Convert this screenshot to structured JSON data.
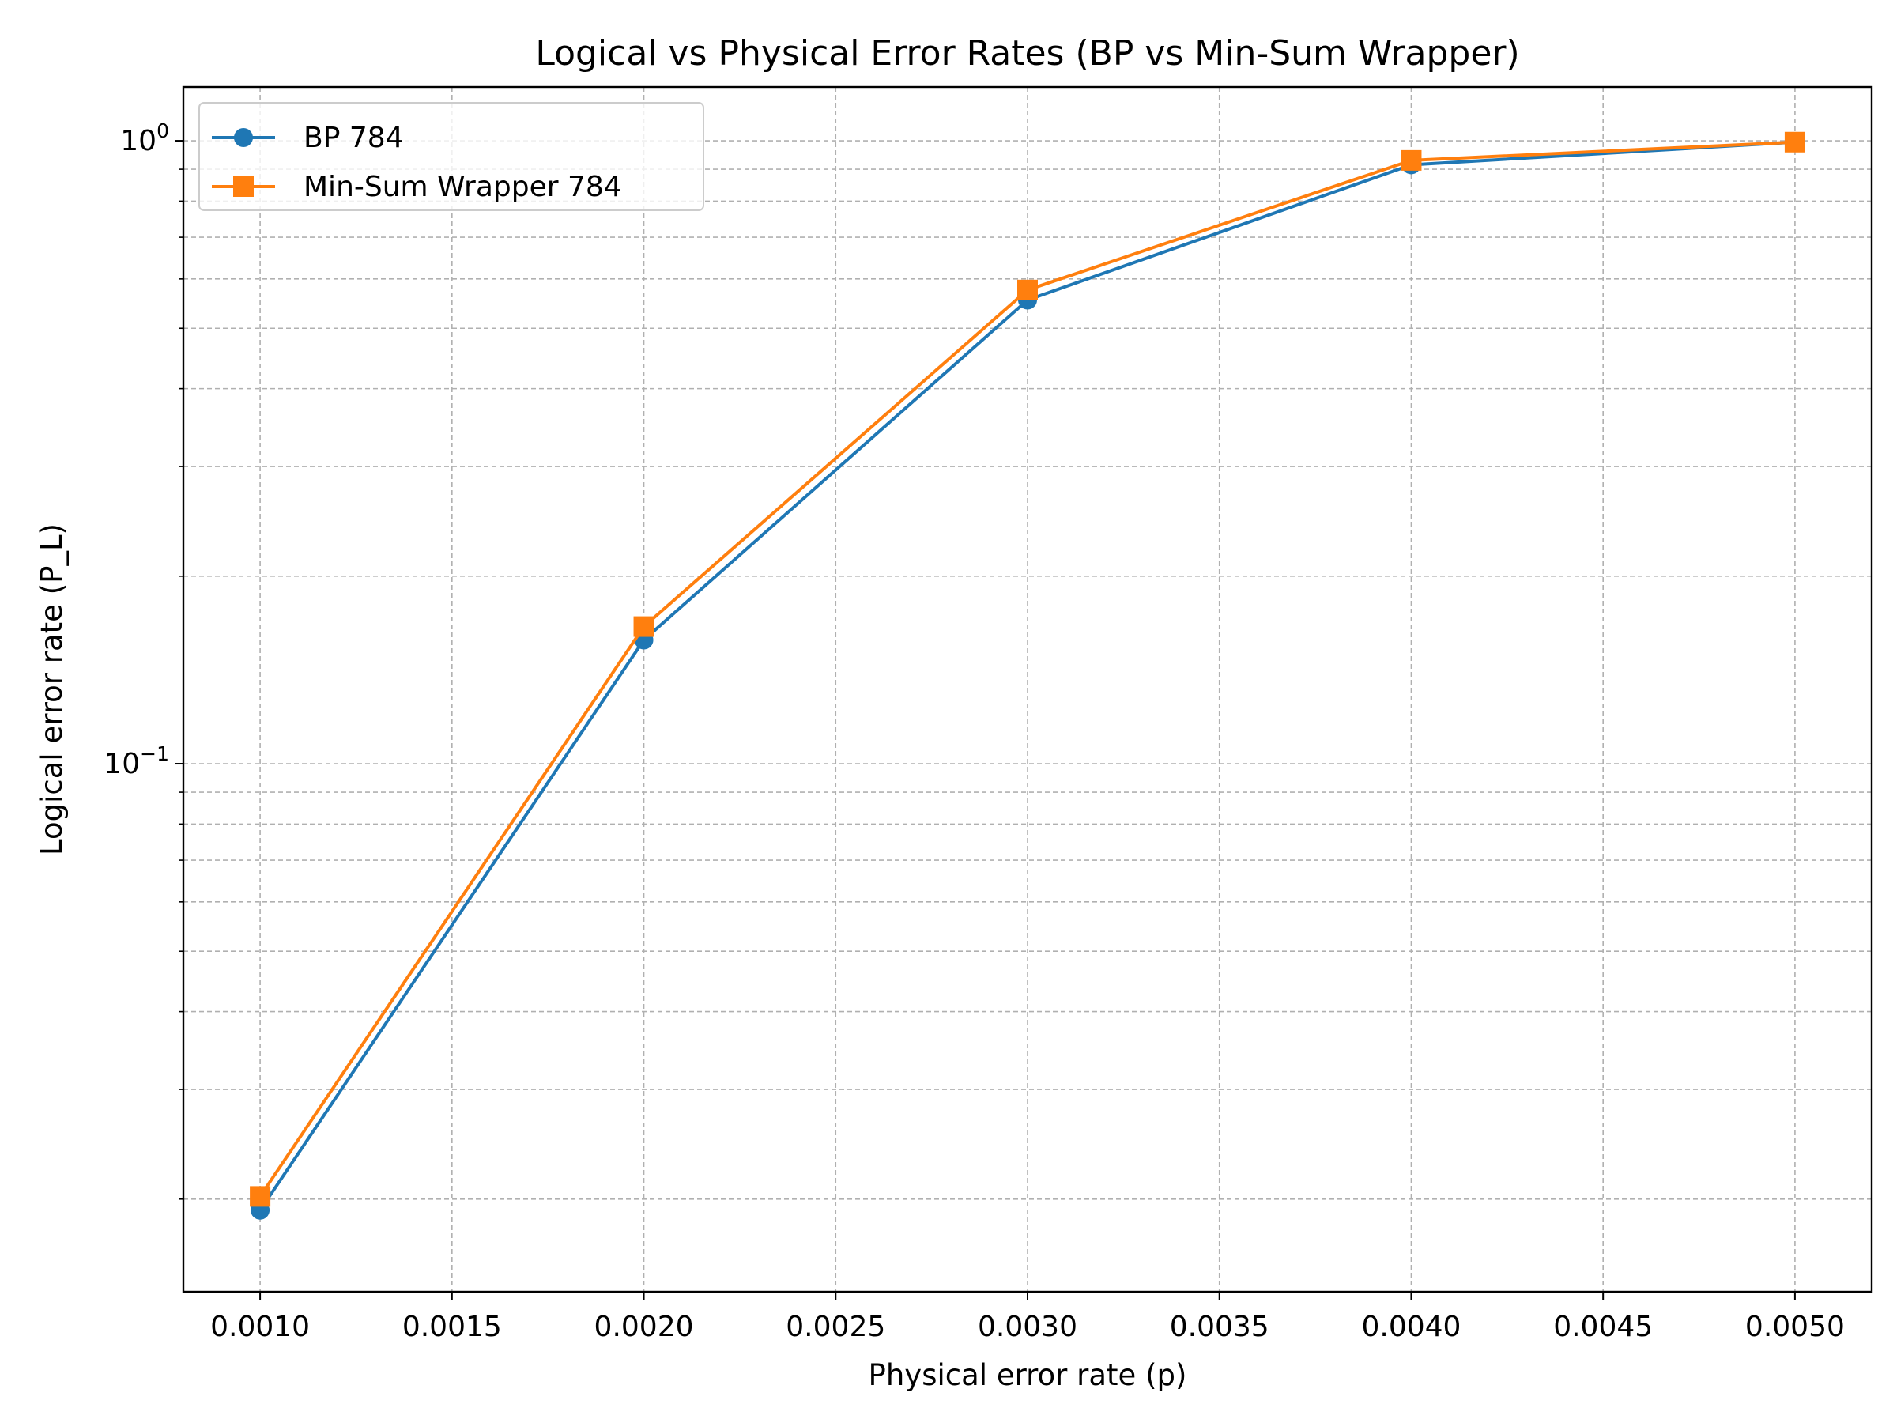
{
  "chart_data": {
    "type": "line",
    "title": "Logical vs Physical Error Rates (BP vs Min-Sum Wrapper)",
    "xlabel": "Physical error rate (p)",
    "ylabel": "Logical error rate (P_L)",
    "x": [
      0.001,
      0.002,
      0.003,
      0.004,
      0.005
    ],
    "x_tick_labels": [
      "0.0010",
      "0.0015",
      "0.0020",
      "0.0025",
      "0.0030",
      "0.0035",
      "0.0040",
      "0.0045",
      "0.0050"
    ],
    "x_ticks": [
      0.001,
      0.0015,
      0.002,
      0.0025,
      0.003,
      0.0035,
      0.004,
      0.0045,
      0.005
    ],
    "xlim": [
      0.0008,
      0.0052
    ],
    "yscale": "log",
    "ylim": [
      0.0142,
      1.22
    ],
    "y_major_ticks": [
      {
        "value": 1,
        "base": "10",
        "exp": "0"
      },
      {
        "value": 0.1,
        "base": "10",
        "exp": "−1"
      }
    ],
    "grid": true,
    "legend_position": "top-left",
    "series": [
      {
        "name": "BP 784",
        "color": "#1f77b4",
        "marker": "circle",
        "values": [
          0.0192,
          0.158,
          0.555,
          0.915,
          0.995
        ]
      },
      {
        "name": "Min-Sum Wrapper 784",
        "color": "#ff7f0e",
        "marker": "square",
        "values": [
          0.0202,
          0.166,
          0.576,
          0.93,
          0.995
        ]
      }
    ]
  }
}
